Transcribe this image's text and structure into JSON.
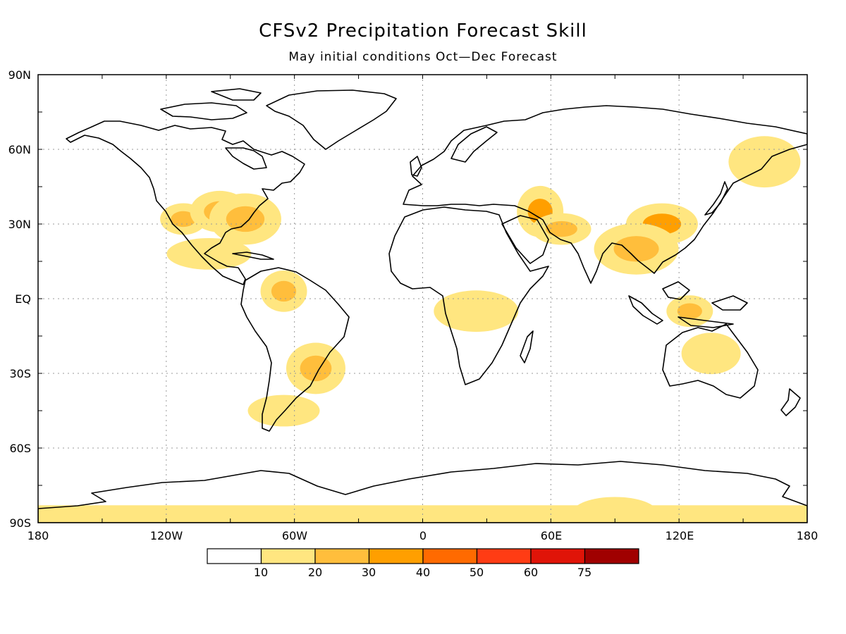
{
  "title": "CFSv2 Precipitation Forecast Skill",
  "subtitle": "May initial conditions   Oct—Dec Forecast",
  "map": {
    "lat_labels": [
      "90N",
      "60N",
      "30N",
      "EQ",
      "30S",
      "60S",
      "90S"
    ],
    "lon_labels": [
      "180",
      "120W",
      "60W",
      "0",
      "60E",
      "120E",
      "180"
    ],
    "grid": true
  },
  "colorbar": {
    "labels": [
      "10",
      "20",
      "30",
      "40",
      "50",
      "60",
      "75"
    ],
    "colors": [
      "#ffffff",
      "#ffe680",
      "#ffbe3c",
      "#ff9f00",
      "#ff6a00",
      "#ff3c14",
      "#e01408",
      "#a00000"
    ]
  },
  "chart_data": {
    "type": "heatmap",
    "title": "CFSv2 Precipitation Forecast Skill",
    "subtitle": "May initial conditions   Oct—Dec Forecast",
    "xlim": [
      -180,
      180
    ],
    "ylim": [
      -90,
      90
    ],
    "x_ticks": [
      "180",
      "120W",
      "60W",
      "0",
      "60E",
      "120E",
      "180"
    ],
    "y_ticks": [
      "90N",
      "60N",
      "30N",
      "EQ",
      "30S",
      "60S",
      "90S"
    ],
    "levels": [
      10,
      20,
      30,
      40,
      50,
      60,
      75
    ],
    "skill_regions": [
      {
        "lon": -112,
        "lat": 32,
        "value": 22
      },
      {
        "lon": -95,
        "lat": 35,
        "value": 25
      },
      {
        "lon": -83,
        "lat": 32,
        "value": 20
      },
      {
        "lon": -100,
        "lat": 18,
        "value": 18
      },
      {
        "lon": -65,
        "lat": 3,
        "value": 25
      },
      {
        "lon": -50,
        "lat": -28,
        "value": 28
      },
      {
        "lon": -65,
        "lat": -45,
        "value": 15
      },
      {
        "lon": 25,
        "lat": -5,
        "value": 18
      },
      {
        "lon": 55,
        "lat": 35,
        "value": 30
      },
      {
        "lon": 65,
        "lat": 28,
        "value": 28
      },
      {
        "lon": 112,
        "lat": 30,
        "value": 35
      },
      {
        "lon": 100,
        "lat": 20,
        "value": 22
      },
      {
        "lon": 125,
        "lat": -5,
        "value": 28
      },
      {
        "lon": 135,
        "lat": -22,
        "value": 18
      },
      {
        "lon": 160,
        "lat": 55,
        "value": 18
      },
      {
        "lon": 90,
        "lat": -86,
        "value": 18
      }
    ]
  }
}
